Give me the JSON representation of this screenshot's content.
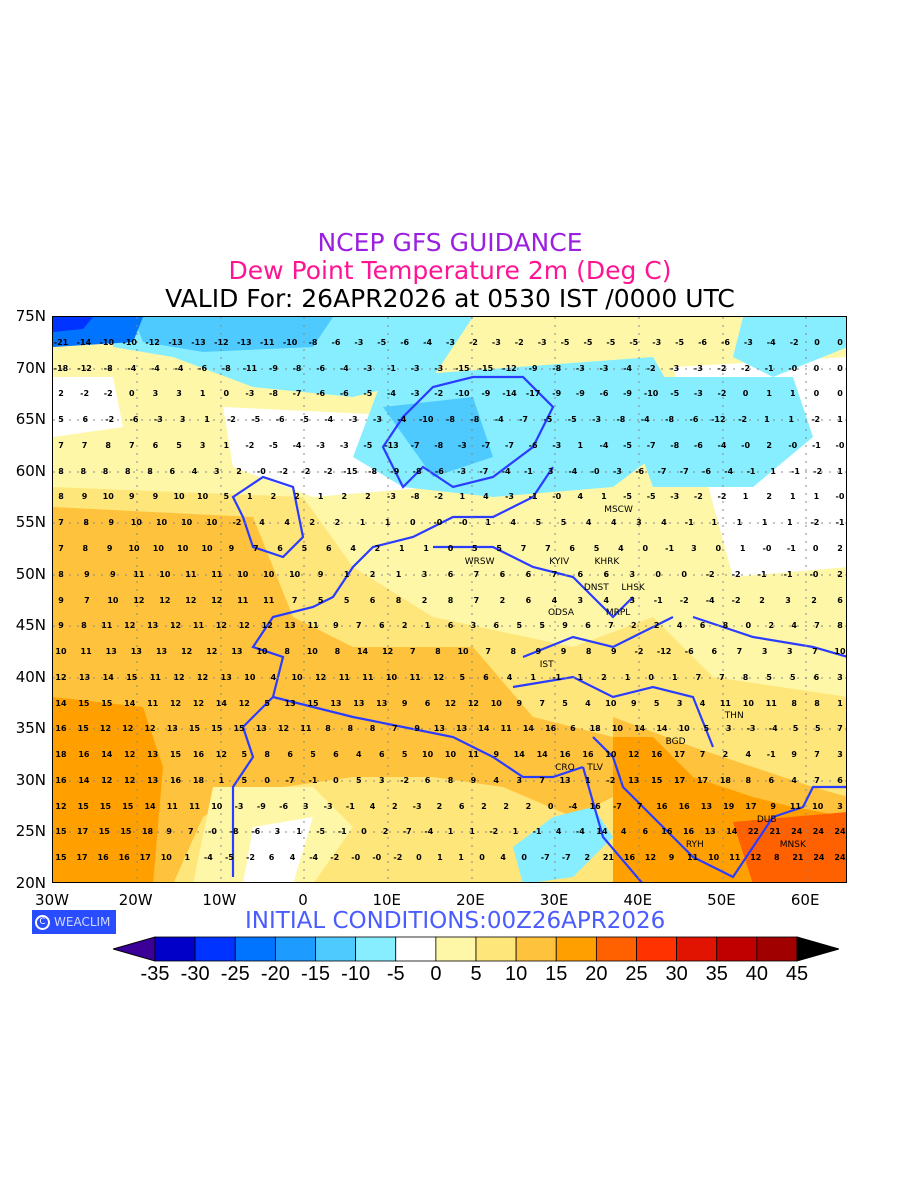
{
  "header": {
    "title": "NCEP GFS GUIDANCE",
    "subtitle": "Dew Point Temperature 2m (Deg C)",
    "valid": "VALID For: 26APR2026 at 0530 IST /0000 UTC"
  },
  "footer": {
    "logo": "WEACLIM",
    "initial": "INITIAL CONDITIONS:00Z26APR2026"
  },
  "map": {
    "lon_range": [
      -30,
      65
    ],
    "lat_range": [
      20,
      75
    ],
    "x_ticks": [
      "30W",
      "20W",
      "10W",
      "0",
      "10E",
      "20E",
      "30E",
      "40E",
      "50E",
      "60E"
    ],
    "y_ticks": [
      "75N",
      "70N",
      "65N",
      "60N",
      "55N",
      "50N",
      "45N",
      "40N",
      "35N",
      "30N",
      "25N",
      "20N"
    ],
    "grid_rows": [
      {
        "lat": 72.5,
        "values": "-21 -14 -10 -10 -12 -13 -13 -12 -13 -11 -10 -8 -6 -3 -5 -6 -4 -3 -2 -3 -2 -3 -5 -5 -5 -5 -3 -5 -6 -6 -3 -4 -2 0 0"
      },
      {
        "lat": 70,
        "values": "-18 -12 -8 -4 -4 -4 -6 -8 -11 -9 -8 -6 -4 -3 -1 -3 -3 -15 -15 -12 -9 -8 -3 -3 -4 -2 -3 -3 -2 -2 -1 -0 0 0"
      },
      {
        "lat": 67.5,
        "values": "2 -2 -2 0 3 3 1 0 -3 -8 -7 -6 -6 -5 -4 -3 -2 -10 -9 -14 -17 -9 -9 -6 -9 -10 -5 -3 -2 0 1 1 0 0"
      },
      {
        "lat": 65,
        "values": "5 6 -2 -6 -3 3 1 -2 -5 -6 -5 -4 -3 -3 -4 -10 -8 -8 -4 -7 -5 -5 -3 -8 -4 -8 -6 -12 -2 1 1 -2 1"
      },
      {
        "lat": 62.5,
        "values": "7 7 8 7 6 5 3 1 -2 -5 -4 -3 -3 -5 -13 -7 -8 -3 -7 -7 -6 -3 1 -4 -5 -7 -8 -6 -4 -0 2 -0 -1 -0"
      },
      {
        "lat": 60,
        "values": "8 8 8 8 8 6 4 3 2 -0 -2 -2 -2 -15 -8 -9 -8 -6 -3 -7 -4 -1 3 -4 -0 -3 -6 -7 -7 -6 -4 -1 1 -1 -2 1"
      },
      {
        "lat": 57.5,
        "values": "8 9 10 9 9 10 10 5 1 2 2 1 2 2 -3 -8 -2 1 4 -3 -1 -0 4 1 -5 -5 -3 -2 -2 1 2 1 1 -0"
      },
      {
        "lat": 55,
        "values": "7 8 9 10 10 10 10 -2 4 4 2 2 1 1 0 -0 -0 1 4 5 5 4 4 3 4 -1 1 1 1 1 -2 -1"
      },
      {
        "lat": 52.5,
        "values": "7 8 9 10 10 10 10 9 7 6 5 6 4 2 1 1 0 5 5 7 7 6 5 4 0 -1 3 0 1 -0 -1 0 2"
      },
      {
        "lat": 50,
        "values": "8 9 9 11 10 11 11 10 10 10 9 1 2 1 3 6 7 6 6 7 6 6 3 0 0 -2 -2 -1 -1 -0 2"
      },
      {
        "lat": 47.5,
        "values": "9 7 10 12 12 12 12 11 11 7 5 5 6 8 2 8 7 2 6 4 3 4 3 -1 -2 -4 -2 2 3 2 6"
      },
      {
        "lat": 45,
        "values": "9 8 11 12 13 12 11 12 12 12 13 11 9 7 6 2 1 6 3 6 5 5 9 6 7 2 2 4 6 8 0 2 4 7 8"
      },
      {
        "lat": 42.5,
        "values": "10 11 13 13 13 12 12 13 10 8 10 8 14 12 7 8 10 7 8 9 9 8 9 -2 -12 -6 6 7 3 3 7 10"
      },
      {
        "lat": 40,
        "values": "12 13 14 15 11 12 12 13 10 4 10 12 11 11 10 11 12 5 6 4 1 -1 1 2 1 0 1 7 7 8 5 5 6 3"
      },
      {
        "lat": 37.5,
        "values": "14 15 15 14 11 12 12 14 12 5 13 15 13 13 13 9 6 12 12 10 9 7 5 4 10 9 5 3 4 11 10 11 8 8 1"
      },
      {
        "lat": 35,
        "values": "16 15 12 12 12 13 15 15 15 13 12 11 8 8 8 7 9 13 13 14 11 14 16 6 18 10 14 14 10 5 3 -3 -4 5 5 7"
      },
      {
        "lat": 32.5,
        "values": "18 16 14 12 13 15 16 12 5 8 6 5 6 4 6 5 10 10 11 9 14 14 16 16 10 12 16 17 7 2 4 -1 9 7 3"
      },
      {
        "lat": 30,
        "values": "16 14 12 12 13 16 18 1 5 0 -7 -1 0 5 3 -2 6 8 9 4 3 7 13 1 -2 13 15 17 17 18 8 6 4 7 6"
      },
      {
        "lat": 27.5,
        "values": "12 15 15 15 14 11 11 10 -3 -9 -6 3 -3 -1 4 2 -3 2 6 2 2 2 0 -4 16 -7 7 16 16 13 19 17 9 11 10 3"
      },
      {
        "lat": 25,
        "values": "15 17 15 15 18 9 7 -0 -8 -6 3 1 -5 -1 0 2 -7 -4 1 1 -2 1 -1 4 -4 14 4 6 16 16 13 14 22 21 24 24 24"
      },
      {
        "lat": 22.5,
        "values": "15 17 16 16 17 10 1 -4 -5 -2 6 4 -4 -2 -0 -0 -2 0 1 1 0 4 0 -7 -7 2 21 16 12 9 11 10 11 12 8 21 24 24"
      }
    ],
    "cities": [
      {
        "name": "MSCW",
        "lon": 37.6,
        "lat": 55.8
      },
      {
        "name": "WRSW",
        "lon": 21.0,
        "lat": 52.2
      },
      {
        "name": "KYIV",
        "lon": 30.5,
        "lat": 50.5
      },
      {
        "name": "KHRK",
        "lon": 36.2,
        "lat": 50.0
      },
      {
        "name": "LHSK",
        "lon": 39.3,
        "lat": 48.6
      },
      {
        "name": "DNST",
        "lon": 37.8,
        "lat": 48.0
      },
      {
        "name": "MRPL",
        "lon": 37.5,
        "lat": 47.1
      },
      {
        "name": "ODSA",
        "lon": 30.7,
        "lat": 46.5
      },
      {
        "name": "IST",
        "lon": 29.0,
        "lat": 41.0
      },
      {
        "name": "THN",
        "lon": 51.4,
        "lat": 35.7
      },
      {
        "name": "BGD",
        "lon": 44.4,
        "lat": 33.3
      },
      {
        "name": "TLV",
        "lon": 34.8,
        "lat": 32.1
      },
      {
        "name": "CRO",
        "lon": 31.2,
        "lat": 30.0
      },
      {
        "name": "RYH",
        "lon": 46.7,
        "lat": 24.7
      },
      {
        "name": "MNSK",
        "lon": 58.4,
        "lat": 23.6
      },
      {
        "name": "DUB",
        "lon": 55.3,
        "lat": 25.2
      }
    ]
  },
  "colorbar": {
    "labels": [
      "-35",
      "-30",
      "-25",
      "-20",
      "-15",
      "-10",
      "-5",
      "0",
      "5",
      "10",
      "15",
      "20",
      "25",
      "30",
      "35",
      "40",
      "45"
    ],
    "low_color": "#3a0098",
    "high_color": "#000000",
    "colors": [
      "#0000c8",
      "#0033ff",
      "#0073ff",
      "#1e9bff",
      "#4fcaff",
      "#86eeff",
      "#ffffff",
      "#fff7a8",
      "#ffe67a",
      "#ffc23c",
      "#ffa000",
      "#ff6000",
      "#ff3200",
      "#e01400",
      "#c00000",
      "#a00000"
    ]
  }
}
